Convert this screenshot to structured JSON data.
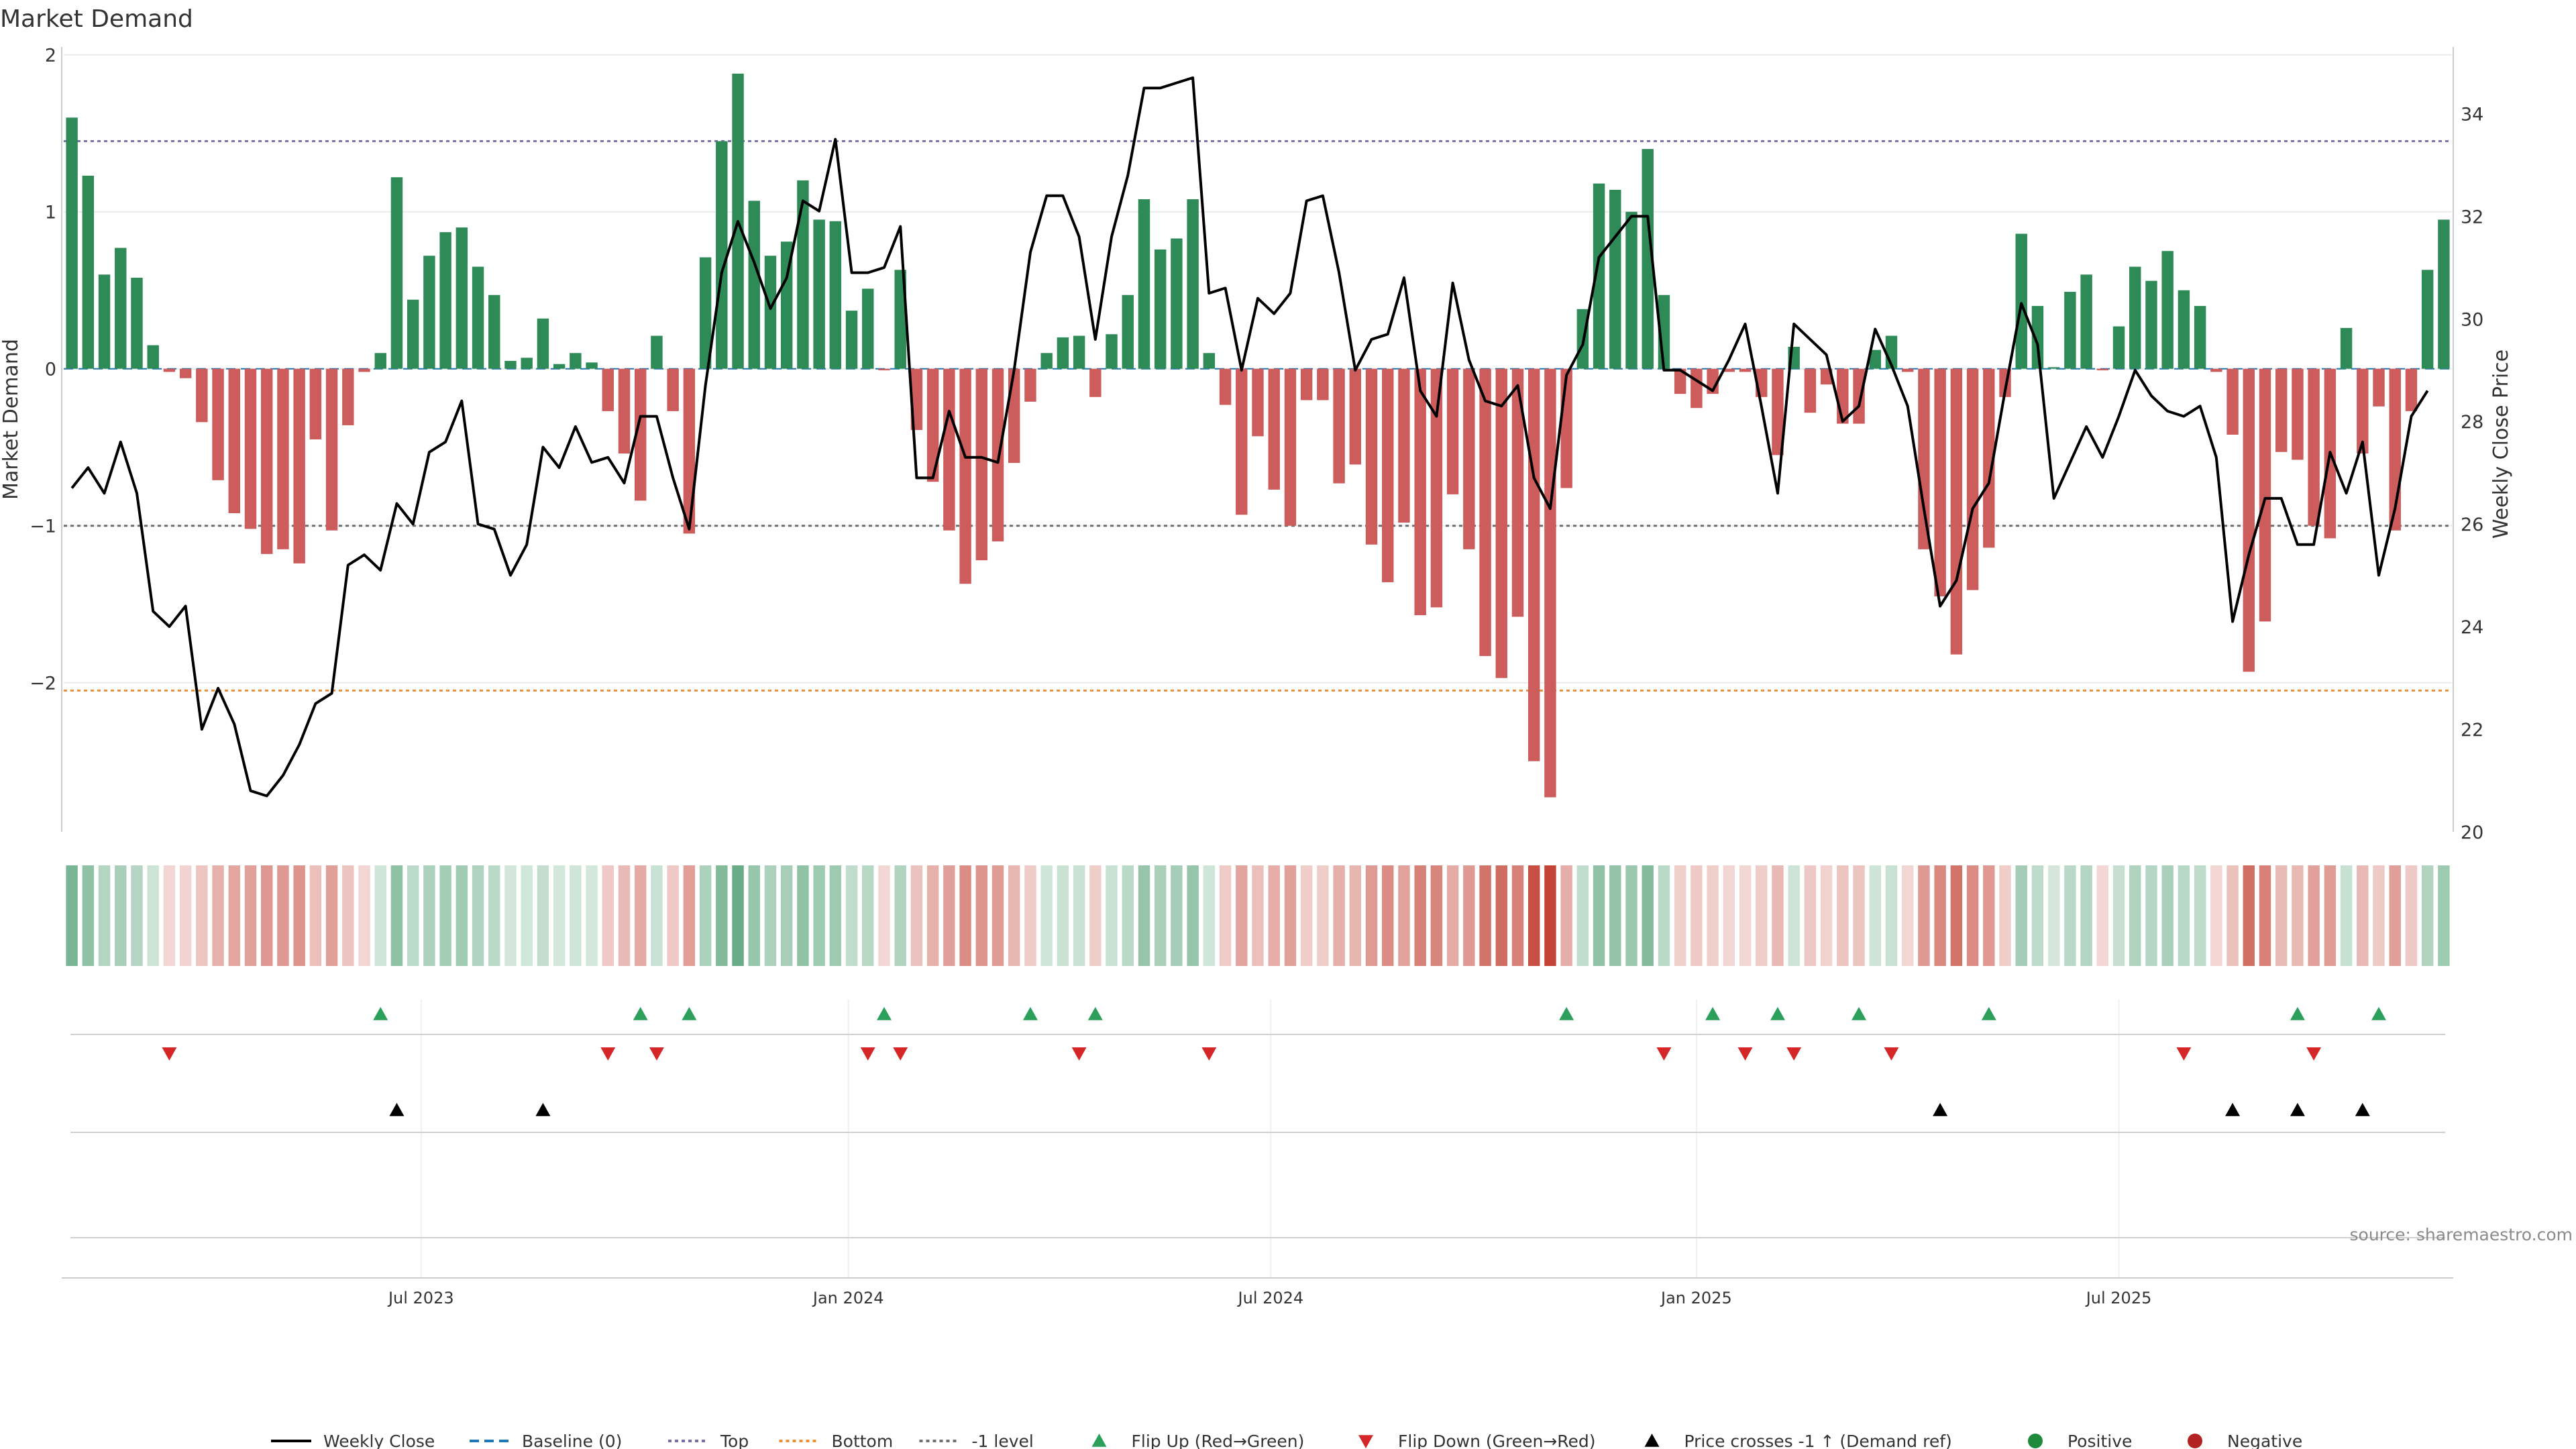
{
  "chart_data": {
    "type": "bar",
    "title": "Market Demand",
    "ylabel": "Market Demand",
    "y2label": "Weekly Close Price",
    "ylim": [
      -2.95,
      2.05
    ],
    "y2lim": [
      20,
      35.3
    ],
    "yticks": [
      {
        "v": 2,
        "label": "2"
      },
      {
        "v": 1,
        "label": "1"
      },
      {
        "v": 0,
        "label": "0"
      },
      {
        "v": -1,
        "label": "−1"
      },
      {
        "v": -2,
        "label": "−2"
      }
    ],
    "y2ticks": [
      {
        "v": 34,
        "label": "34"
      },
      {
        "v": 32,
        "label": "32"
      },
      {
        "v": 30,
        "label": "30"
      },
      {
        "v": 28,
        "label": "28"
      },
      {
        "v": 26,
        "label": "26"
      },
      {
        "v": 24,
        "label": "24"
      },
      {
        "v": 22,
        "label": "22"
      },
      {
        "v": 20,
        "label": "20"
      }
    ],
    "xticks": [
      {
        "label": "Jul 2023",
        "index": 21.5
      },
      {
        "label": "Jan 2024",
        "index": 47.8
      },
      {
        "label": "Jul 2024",
        "index": 73.8
      },
      {
        "label": "Jan 2025",
        "index": 100.0
      },
      {
        "label": "Jul 2025",
        "index": 126.0
      }
    ],
    "reference_lines": [
      {
        "name": "Top",
        "value": 1.45,
        "color": "#7b6ea6",
        "style": "dotted"
      },
      {
        "name": "-1 level",
        "value": -1.0,
        "color": "#6f6f6f",
        "style": "dotted"
      },
      {
        "name": "Bottom",
        "value": -2.05,
        "color": "#e8913a",
        "style": "dotted"
      }
    ],
    "demand": [
      1.6,
      1.23,
      0.6,
      0.77,
      0.58,
      0.15,
      -0.02,
      -0.06,
      -0.34,
      -0.71,
      -0.92,
      -1.02,
      -1.18,
      -1.15,
      -1.24,
      -0.45,
      -1.03,
      -0.36,
      -0.02,
      0.1,
      1.22,
      0.44,
      0.72,
      0.87,
      0.9,
      0.65,
      0.47,
      0.05,
      0.07,
      0.32,
      0.03,
      0.1,
      0.04,
      -0.27,
      -0.54,
      -0.84,
      0.21,
      -0.27,
      -1.05,
      0.71,
      1.45,
      1.88,
      1.07,
      0.72,
      0.81,
      1.2,
      0.95,
      0.94,
      0.37,
      0.51,
      -0.01,
      0.63,
      -0.39,
      -0.72,
      -1.03,
      -1.37,
      -1.22,
      -1.1,
      -0.6,
      -0.21,
      0.1,
      0.2,
      0.21,
      -0.18,
      0.22,
      0.47,
      1.08,
      0.76,
      0.83,
      1.08,
      0.1,
      -0.23,
      -0.93,
      -0.43,
      -0.77,
      -1.0,
      -0.2,
      -0.2,
      -0.73,
      -0.61,
      -1.12,
      -1.36,
      -0.98,
      -1.57,
      -1.52,
      -0.8,
      -1.15,
      -1.83,
      -1.97,
      -1.58,
      -2.5,
      -2.73,
      -0.76,
      0.38,
      1.18,
      1.14,
      1.0,
      1.4,
      0.47,
      -0.16,
      -0.25,
      -0.16,
      -0.02,
      -0.02,
      -0.18,
      -0.55,
      0.14,
      -0.28,
      -0.1,
      -0.35,
      -0.35,
      0.12,
      0.21,
      -0.02,
      -1.15,
      -1.45,
      -1.82,
      -1.41,
      -1.14,
      -0.18,
      0.86,
      0.4,
      0.01,
      0.49,
      0.6,
      -0.01,
      0.27,
      0.65,
      0.56,
      0.75,
      0.5,
      0.4,
      -0.02,
      -0.42,
      -1.93,
      -1.61,
      -0.53,
      -0.58,
      -1.0,
      -1.08,
      0.26,
      -0.54,
      -0.24,
      -1.03,
      -0.27,
      0.63,
      0.95
    ],
    "weekly_close": [
      26.7,
      27.1,
      26.6,
      27.6,
      26.6,
      24.3,
      24.0,
      24.4,
      22.0,
      22.8,
      22.1,
      20.8,
      20.7,
      21.1,
      21.7,
      22.5,
      22.7,
      25.2,
      25.4,
      25.1,
      26.4,
      26.0,
      27.4,
      27.6,
      28.4,
      26.0,
      25.9,
      25.0,
      25.6,
      27.5,
      27.1,
      27.9,
      27.2,
      27.3,
      26.8,
      28.1,
      28.1,
      26.9,
      25.9,
      28.7,
      30.9,
      31.9,
      31.1,
      30.2,
      30.8,
      32.3,
      32.1,
      33.5,
      30.9,
      30.9,
      31.0,
      31.8,
      26.9,
      26.9,
      28.2,
      27.3,
      27.3,
      27.2,
      29.0,
      31.3,
      32.4,
      32.4,
      31.6,
      29.6,
      31.6,
      32.8,
      34.5,
      34.5,
      34.6,
      34.7,
      30.5,
      30.6,
      29.0,
      30.4,
      30.1,
      30.5,
      32.3,
      32.4,
      30.9,
      29.0,
      29.6,
      29.7,
      30.8,
      28.6,
      28.1,
      30.7,
      29.2,
      28.4,
      28.3,
      28.7,
      26.9,
      26.3,
      28.9,
      29.5,
      31.2,
      31.6,
      32.0,
      32.0,
      29.0,
      29.0,
      28.8,
      28.6,
      29.2,
      29.9,
      28.3,
      26.6,
      29.9,
      29.6,
      29.3,
      28.0,
      28.3,
      29.8,
      29.1,
      28.3,
      26.3,
      24.4,
      24.9,
      26.3,
      26.8,
      28.6,
      30.3,
      29.5,
      26.5,
      27.2,
      27.9,
      27.3,
      28.1,
      29.0,
      28.5,
      28.2,
      28.1,
      28.3,
      27.3,
      24.1,
      25.4,
      26.5,
      26.5,
      25.6,
      25.6,
      27.4,
      26.6,
      27.6,
      25.0,
      26.3,
      28.1,
      28.6
    ],
    "flip_up_index": [
      19,
      35,
      38,
      50,
      59,
      63,
      92,
      101,
      105,
      110,
      118,
      137,
      142
    ],
    "flip_down_index": [
      6,
      33,
      36,
      49,
      51,
      62,
      70,
      98,
      103,
      106,
      112,
      130,
      138
    ],
    "price_cross_index": [
      20,
      29,
      115,
      133,
      137,
      141
    ],
    "source": "source: sharemaestro.com",
    "legend": {
      "position": "bottom-center",
      "items": [
        {
          "label": "Weekly Close",
          "kind": "line-solid",
          "color": "#000000"
        },
        {
          "label": "Baseline (0)",
          "kind": "line-dashed",
          "color": "#1f77b4"
        },
        {
          "label": "Top",
          "kind": "line-dotted",
          "color": "#7b6ea6"
        },
        {
          "label": "Bottom",
          "kind": "line-dotted",
          "color": "#e8913a"
        },
        {
          "label": "-1 level",
          "kind": "line-dotted",
          "color": "#6f6f6f"
        },
        {
          "label": "Flip Up (Red→Green)",
          "kind": "triangle-up",
          "color": "#2ca05a"
        },
        {
          "label": "Flip Down (Green→Red)",
          "kind": "triangle-down",
          "color": "#d62728"
        },
        {
          "label": "Price crosses -1 ↑ (Demand ref)",
          "kind": "triangle-up",
          "color": "#000000"
        },
        {
          "label": "Positive",
          "kind": "dot",
          "color": "#1f8a3c"
        },
        {
          "label": "Negative",
          "kind": "dot",
          "color": "#b22222"
        }
      ]
    },
    "colors": {
      "positive": "#2e8b57",
      "negative": "#cd5c5c",
      "close": "#000000",
      "flip_up": "#2ca05a",
      "flip_down": "#d62728",
      "cross": "#000000",
      "grid": "#ebebeb",
      "axis": "#cccccc"
    }
  }
}
